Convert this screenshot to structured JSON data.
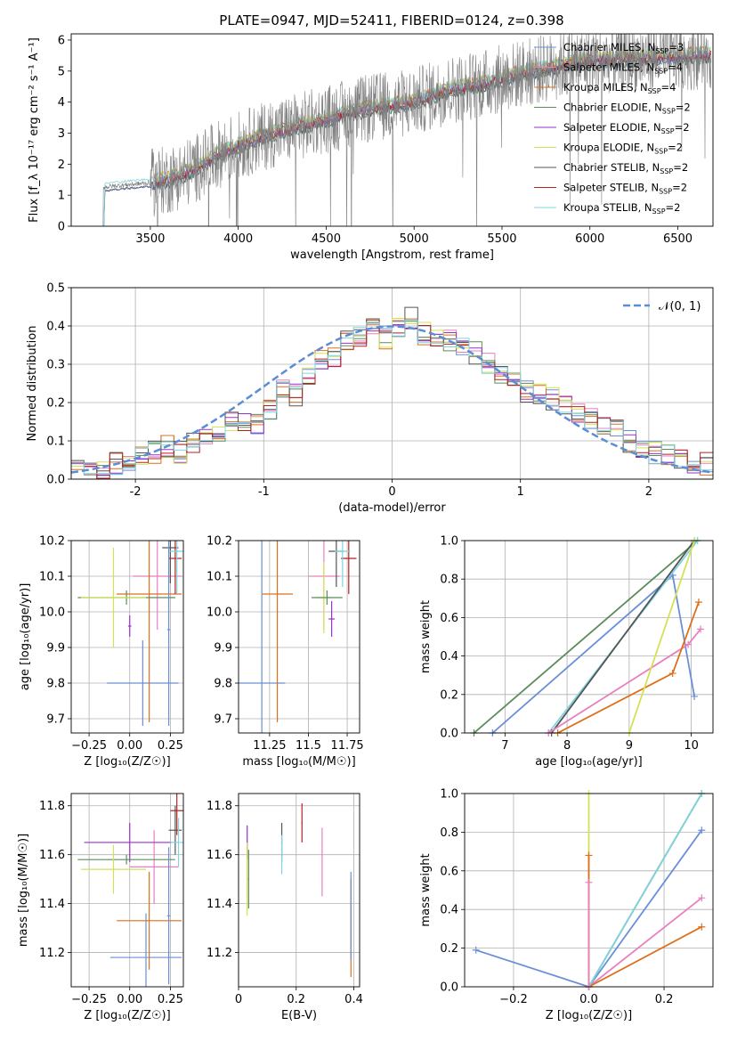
{
  "title": "PLATE=0947, MJD=52411, FIBERID=0124, z=0.398",
  "colors": {
    "chabrier_miles": "#6a8fd8",
    "salpeter_miles": "#e97fc0",
    "kroupa_miles": "#de6f1a",
    "chabrier_elodie": "#5b8c5a",
    "salpeter_elodie": "#9932cc",
    "kroupa_elodie": "#d4e157",
    "chabrier_stelib": "#555555",
    "salpeter_stelib": "#b22222",
    "kroupa_stelib": "#7fd4e0",
    "observed": "#808080",
    "normal_curve": "#5b8dd6"
  },
  "chart_data": [
    {
      "type": "line",
      "xlabel": "wavelength [Angstrom, rest frame]",
      "ylabel": "Flux [f_λ 10⁻¹⁷ erg cm⁻² s⁻¹ A⁻¹]",
      "xlim": [
        3050,
        6700
      ],
      "ylim": [
        0,
        6.2
      ],
      "xticks": [
        3500,
        4000,
        4500,
        5000,
        5500,
        6000,
        6500
      ],
      "yticks": [
        0,
        1,
        2,
        3,
        4,
        5,
        6
      ],
      "grid": false,
      "legend_position": "top-right",
      "legend": [
        {
          "label": "Chabrier MILES, N",
          "sub": "SSP",
          "suffix": "=3"
        },
        {
          "label": "Salpeter MILES, N",
          "sub": "SSP",
          "suffix": "=4"
        },
        {
          "label": "Kroupa MILES, N",
          "sub": "SSP",
          "suffix": "=4"
        },
        {
          "label": "Chabrier ELODIE, N",
          "sub": "SSP",
          "suffix": "=2"
        },
        {
          "label": "Salpeter ELODIE, N",
          "sub": "SSP",
          "suffix": "=2"
        },
        {
          "label": "Kroupa ELODIE, N",
          "sub": "SSP",
          "suffix": "=2"
        },
        {
          "label": "Chabrier STELIB, N",
          "sub": "SSP",
          "suffix": "=2"
        },
        {
          "label": "Salpeter STELIB, N",
          "sub": "SSP",
          "suffix": "=2"
        },
        {
          "label": "Kroupa STELIB, N",
          "sub": "SSP",
          "suffix": "=2"
        }
      ],
      "continuum": {
        "x": [
          3230,
          3300,
          3400,
          3500,
          3600,
          3700,
          3800,
          3900,
          4000,
          4200,
          4400,
          4600,
          4800,
          5000,
          5200,
          5400,
          5600,
          5800,
          6000,
          6200,
          6400,
          6600,
          6700
        ],
        "y": [
          1.25,
          1.3,
          1.35,
          1.4,
          1.5,
          1.7,
          2.0,
          2.35,
          2.6,
          3.0,
          3.3,
          3.6,
          3.85,
          4.0,
          4.4,
          4.6,
          4.9,
          5.15,
          5.35,
          5.4,
          5.45,
          5.5,
          5.5
        ]
      }
    },
    {
      "type": "bar",
      "xlabel": "(data-model)/error",
      "ylabel": "Normed distribution",
      "xlim": [
        -2.5,
        2.5
      ],
      "ylim": [
        0,
        0.5
      ],
      "xticks": [
        -2,
        -1,
        0,
        1,
        2
      ],
      "yticks": [
        0.0,
        0.1,
        0.2,
        0.3,
        0.4,
        0.5
      ],
      "grid": true,
      "legend_position": "top-right",
      "legend": [
        "𝒩(0, 1)"
      ],
      "bins": [
        -2.5,
        -2.4,
        -2.3,
        -2.2,
        -2.1,
        -2.0,
        -1.9,
        -1.8,
        -1.7,
        -1.6,
        -1.5,
        -1.4,
        -1.3,
        -1.2,
        -1.1,
        -1.0,
        -0.9,
        -0.8,
        -0.7,
        -0.6,
        -0.5,
        -0.4,
        -0.3,
        -0.2,
        -0.1,
        0.0,
        0.1,
        0.2,
        0.3,
        0.4,
        0.5,
        0.6,
        0.7,
        0.8,
        0.9,
        1.0,
        1.1,
        1.2,
        1.3,
        1.4,
        1.5,
        1.6,
        1.7,
        1.8,
        1.9,
        2.0,
        2.1,
        2.2,
        2.3,
        2.4
      ],
      "mean_hist": [
        0.025,
        0.02,
        0.03,
        0.04,
        0.05,
        0.055,
        0.07,
        0.085,
        0.07,
        0.09,
        0.1,
        0.11,
        0.15,
        0.155,
        0.14,
        0.18,
        0.23,
        0.22,
        0.27,
        0.31,
        0.32,
        0.36,
        0.37,
        0.39,
        0.37,
        0.4,
        0.42,
        0.38,
        0.37,
        0.36,
        0.35,
        0.33,
        0.3,
        0.27,
        0.25,
        0.23,
        0.22,
        0.21,
        0.2,
        0.17,
        0.16,
        0.14,
        0.13,
        0.1,
        0.085,
        0.07,
        0.06,
        0.05,
        0.045,
        0.04
      ]
    },
    {
      "type": "scatter",
      "xlabel": "Z [log₁₀(Z/Z☉)]",
      "ylabel": "age  [log₁₀(age/yr)]",
      "xlim": [
        -0.36,
        0.33
      ],
      "ylim": [
        9.66,
        10.2
      ],
      "xticks": [
        -0.25,
        0.0,
        0.25
      ],
      "xtick_labels": [
        "−0.25",
        "0.00",
        "0.25"
      ],
      "yticks": [
        9.7,
        9.8,
        9.9,
        10.0,
        10.1,
        10.2
      ],
      "grid": true
    },
    {
      "type": "scatter",
      "xlabel": "mass [log₁₀(M/M☉)]",
      "xlim": [
        11.05,
        11.83
      ],
      "ylim": [
        9.66,
        10.2
      ],
      "xticks": [
        11.25,
        11.5,
        11.75
      ],
      "yticks": [
        9.7,
        9.8,
        9.9,
        10.0,
        10.1,
        10.2
      ],
      "grid": true
    },
    {
      "type": "line",
      "xlabel": "age  [log₁₀(age/yr)]",
      "ylabel": "mass weight",
      "xlim": [
        6.35,
        10.35
      ],
      "ylim": [
        0,
        1
      ],
      "xticks": [
        7,
        8,
        9,
        10
      ],
      "yticks": [
        0.0,
        0.2,
        0.4,
        0.6,
        0.8,
        1.0
      ],
      "grid": true,
      "series": [
        {
          "color_key": "chabrier_elodie",
          "x": [
            6.5,
            10.1
          ],
          "y": [
            0.0,
            1.0
          ]
        },
        {
          "color_key": "chabrier_miles",
          "x": [
            6.8,
            9.7,
            10.05
          ],
          "y": [
            0.0,
            0.82,
            0.19
          ]
        },
        {
          "color_key": "kroupa_stelib",
          "x": [
            7.7,
            10.1
          ],
          "y": [
            0.0,
            1.0
          ]
        },
        {
          "color_key": "chabrier_stelib",
          "x": [
            7.75,
            10.05
          ],
          "y": [
            0.0,
            1.0
          ]
        },
        {
          "color_key": "salpeter_miles",
          "x": [
            7.7,
            9.95,
            10.15
          ],
          "y": [
            0.0,
            0.46,
            0.54
          ]
        },
        {
          "color_key": "kroupa_miles",
          "x": [
            7.85,
            9.7,
            10.12
          ],
          "y": [
            0.0,
            0.31,
            0.68
          ]
        },
        {
          "color_key": "kroupa_elodie",
          "x": [
            9.0,
            10.05
          ],
          "y": [
            0.0,
            1.0
          ]
        }
      ]
    },
    {
      "type": "scatter",
      "xlabel": "Z [log₁₀(Z/Z☉)]",
      "ylabel": "mass [log₁₀(M/M☉)]",
      "xlim": [
        -0.36,
        0.33
      ],
      "ylim": [
        11.06,
        11.85
      ],
      "xticks": [
        -0.25,
        0.0,
        0.25
      ],
      "xtick_labels": [
        "−0.25",
        "0.00",
        "0.25"
      ],
      "yticks": [
        11.2,
        11.4,
        11.6,
        11.8
      ],
      "grid": true
    },
    {
      "type": "scatter",
      "xlabel": "E(B-V)",
      "xlim": [
        0.0,
        0.42
      ],
      "ylim": [
        11.06,
        11.85
      ],
      "xticks": [
        0.0,
        0.2,
        0.4
      ],
      "yticks": [
        11.2,
        11.4,
        11.6,
        11.8
      ],
      "grid": true
    },
    {
      "type": "line",
      "xlabel": "Z [log₁₀(Z/Z☉)]",
      "ylabel": "mass weight",
      "xlim": [
        -0.33,
        0.33
      ],
      "ylim": [
        0,
        1
      ],
      "xticks": [
        -0.2,
        0.0,
        0.2
      ],
      "xtick_labels": [
        "−0.2",
        "0.0",
        "0.2"
      ],
      "yticks": [
        0.0,
        0.2,
        0.4,
        0.6,
        0.8,
        1.0
      ],
      "grid": true,
      "series": [
        {
          "color_key": "chabrier_miles",
          "x": [
            -0.3,
            0.0,
            0.3
          ],
          "y": [
            0.19,
            0.0,
            0.81
          ]
        },
        {
          "color_key": "salpeter_miles",
          "x": [
            0.0,
            0.3
          ],
          "y": [
            0.0,
            0.46
          ]
        },
        {
          "color_key": "kroupa_miles",
          "x": [
            0.0,
            0.3
          ],
          "y": [
            0.0,
            0.31
          ]
        },
        {
          "color_key": "chabrier_elodie",
          "x": [
            0.0,
            0.3
          ],
          "y": [
            0.0,
            1.0
          ]
        },
        {
          "color_key": "kroupa_stelib",
          "x": [
            0.0,
            0.3
          ],
          "y": [
            0.0,
            1.0
          ]
        },
        {
          "color_key": "kroupa_elodie",
          "x": [
            0.0,
            0.0
          ],
          "y": [
            0.0,
            1.0
          ]
        },
        {
          "color_key": "kroupa_miles",
          "x": [
            0.0,
            0.0
          ],
          "y": [
            0.0,
            0.68
          ]
        },
        {
          "color_key": "salpeter_miles",
          "x": [
            0.0,
            0.0
          ],
          "y": [
            0.0,
            0.54
          ]
        }
      ]
    }
  ]
}
